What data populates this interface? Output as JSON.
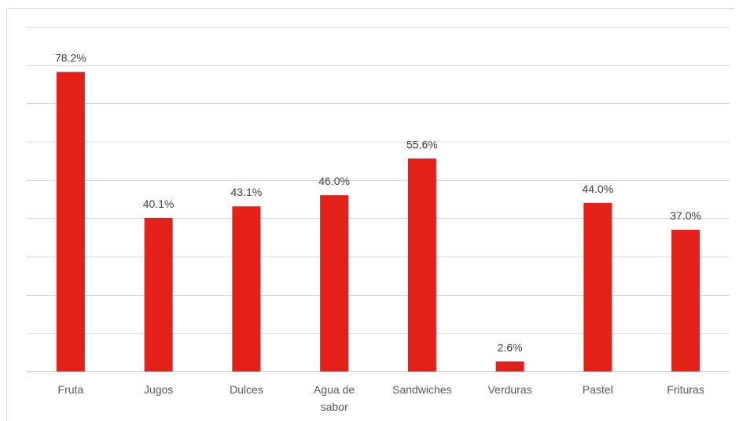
{
  "chart_data": {
    "type": "bar",
    "title": "",
    "xlabel": "",
    "ylabel": "",
    "ylim": [
      0,
      90
    ],
    "grid": true,
    "legend": "none",
    "categories": [
      "Fruta",
      "Jugos",
      "Dulces",
      "Agua de sabor",
      "Sandwiches",
      "Verduras",
      "Pastel",
      "Frituras"
    ],
    "category_lines": [
      [
        "Fruta"
      ],
      [
        "Jugos"
      ],
      [
        "Dulces"
      ],
      [
        "Agua de",
        "sabor"
      ],
      [
        "Sandwiches"
      ],
      [
        "Verduras"
      ],
      [
        "Pastel"
      ],
      [
        "Frituras"
      ]
    ],
    "values": [
      78.2,
      40.1,
      43.1,
      46.0,
      55.6,
      2.6,
      44.0,
      37.0
    ],
    "data_labels": [
      "78.2%",
      "40.1%",
      "43.1%",
      "46.0%",
      "55.6%",
      "2.6%",
      "44.0%",
      "37.0%"
    ],
    "colors": {
      "bar": "#e32119"
    }
  }
}
